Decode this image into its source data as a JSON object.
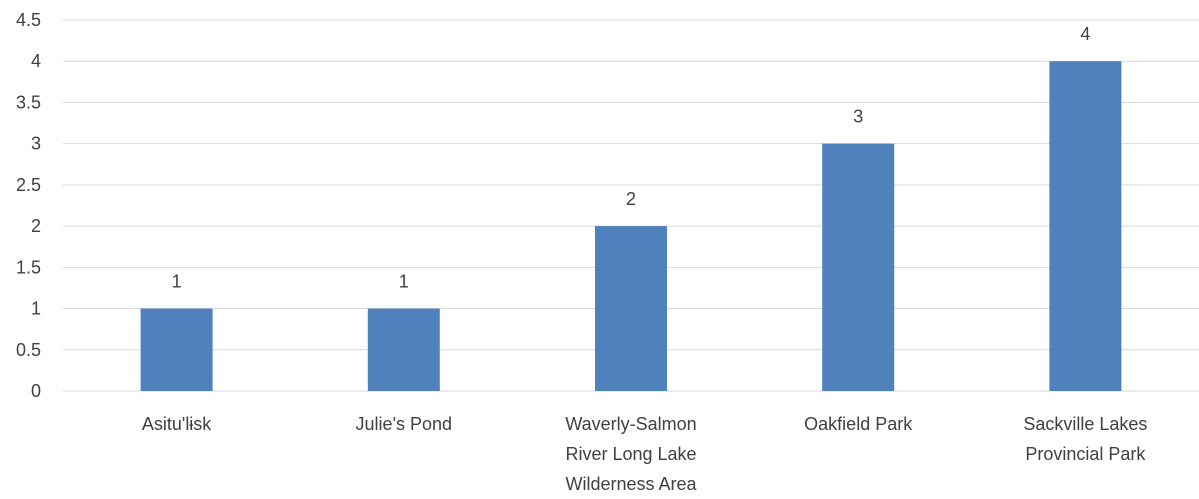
{
  "chart_data": {
    "type": "bar",
    "categories": [
      [
        "Asitu'lɨsk"
      ],
      [
        "Julie's Pond"
      ],
      [
        "Waverly-Salmon",
        "River Long Lake",
        "Wilderness Area"
      ],
      [
        "Oakfield Park"
      ],
      [
        "Sackville Lakes",
        "Provincial Park"
      ]
    ],
    "values": [
      1,
      1,
      2,
      3,
      4
    ],
    "data_labels": [
      "1",
      "1",
      "2",
      "3",
      "4"
    ],
    "ylim": [
      0,
      4.5
    ],
    "yticks": [
      "0",
      "0.5",
      "1",
      "1.5",
      "2",
      "2.5",
      "3",
      "3.5",
      "4",
      "4.5"
    ],
    "ytick_values": [
      0,
      0.5,
      1,
      1.5,
      2,
      2.5,
      3,
      3.5,
      4,
      4.5
    ],
    "bar_color": "#4f81bd",
    "grid": true,
    "legend": "none",
    "title": "",
    "xlabel": "",
    "ylabel": ""
  }
}
